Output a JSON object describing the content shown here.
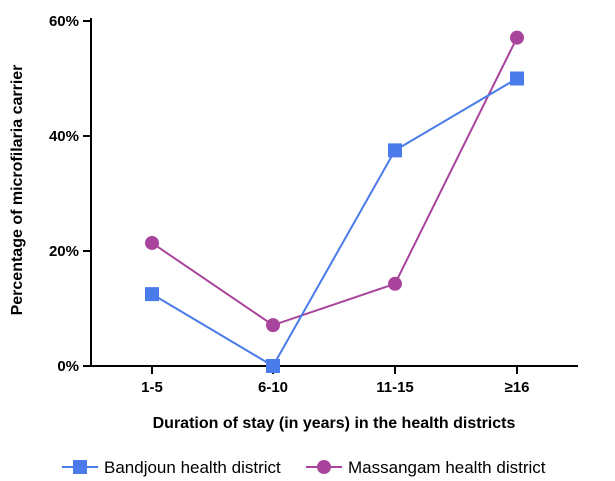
{
  "chart_data": {
    "type": "line",
    "categories": [
      "1-5",
      "6-10",
      "11-15",
      "≥16"
    ],
    "xlabel": "Duration of stay (in years) in the health districts",
    "ylabel": "Percentage of microfilaria carrier",
    "ylim": [
      0,
      60
    ],
    "yticks": [
      0,
      20,
      40,
      60
    ],
    "yticklabels": [
      "0%",
      "20%",
      "40%",
      "60%"
    ],
    "grid": false,
    "legend": "bottom",
    "series": [
      {
        "name": "Bandjoun health district",
        "values": [
          12.5,
          0,
          37.5,
          50
        ],
        "color": "#4a7bea",
        "marker": "square"
      },
      {
        "name": "Massangam health district",
        "values": [
          21.4,
          7.1,
          14.3,
          57.1
        ],
        "color": "#a8449c",
        "marker": "circle"
      }
    ]
  }
}
